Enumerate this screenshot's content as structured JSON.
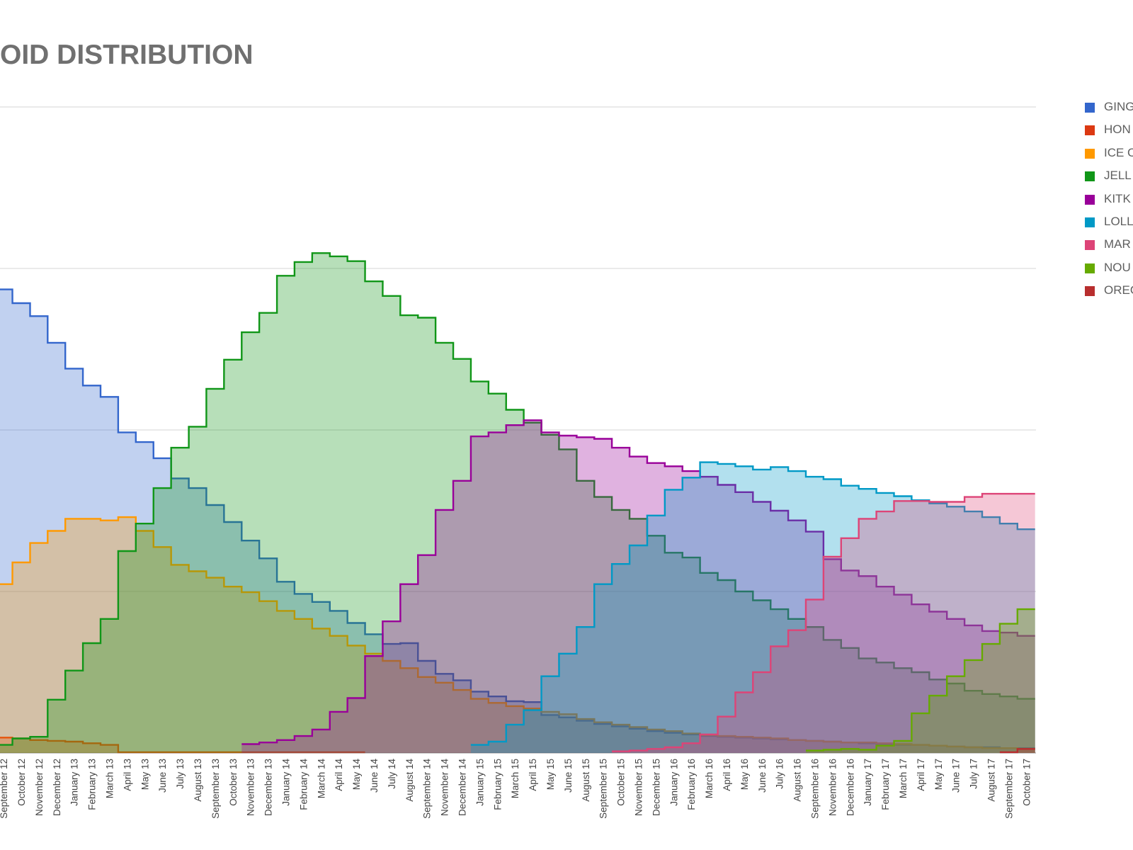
{
  "title": "OID DISTRIBUTION",
  "legend": [
    {
      "label": "GING",
      "color": "#3366cc"
    },
    {
      "label": "HON",
      "color": "#dc3912"
    },
    {
      "label": "ICE C",
      "color": "#ff9900"
    },
    {
      "label": "JELL",
      "color": "#109618"
    },
    {
      "label": "KITK",
      "color": "#990099"
    },
    {
      "label": "LOLL",
      "color": "#0099c6"
    },
    {
      "label": "MAR",
      "color": "#dd4477"
    },
    {
      "label": "NOU",
      "color": "#66aa00"
    },
    {
      "label": "OREO",
      "color": "#b82e2e"
    }
  ],
  "chart_data": {
    "type": "area",
    "style": "stepped, overlapping, semi-transparent fill",
    "title": "OID DISTRIBUTION",
    "xlabel": "",
    "ylabel": "",
    "ylim": [
      0,
      80
    ],
    "y_gridlines": [
      0,
      20,
      40,
      60,
      80
    ],
    "grid": true,
    "legend_position": "right",
    "categories": [
      "September 12",
      "October 12",
      "November 12",
      "December 12",
      "January 13",
      "February 13",
      "March 13",
      "April 13",
      "May 13",
      "June 13",
      "July 13",
      "August 13",
      "September 13",
      "October 13",
      "November 13",
      "December 13",
      "January 14",
      "February 14",
      "March 14",
      "April 14",
      "May 14",
      "June 14",
      "July 14",
      "August 14",
      "September 14",
      "November 14",
      "December 14",
      "January 15",
      "February 15",
      "March 15",
      "April 15",
      "May 15",
      "June 15",
      "August 15",
      "September 15",
      "October 15",
      "November 15",
      "December 15",
      "January 16",
      "February 16",
      "March 16",
      "April 16",
      "May 16",
      "June 16",
      "July 16",
      "August 16",
      "September 16",
      "November 16",
      "December 16",
      "January 17",
      "February 17",
      "March 17",
      "April 17",
      "May 17",
      "June 17",
      "July 17",
      "August 17",
      "September 17",
      "October 17"
    ],
    "series": [
      {
        "name": "GING",
        "color": "#3366cc",
        "values": [
          57.4,
          55.7,
          54.1,
          50.8,
          47.6,
          45.5,
          44.1,
          39.7,
          38.5,
          36.5,
          34.0,
          32.8,
          30.7,
          28.6,
          26.3,
          24.1,
          21.2,
          19.7,
          18.7,
          17.6,
          16.1,
          14.7,
          13.5,
          13.6,
          11.4,
          9.8,
          9.0,
          7.6,
          7.0,
          6.4,
          6.3,
          4.7,
          4.4,
          4.0,
          3.6,
          3.3,
          3.0,
          2.7,
          2.5,
          2.3,
          2.1,
          2.0,
          1.9,
          1.8,
          1.7,
          1.6,
          1.5,
          1.4,
          1.3,
          1.2,
          1.1,
          1.0,
          1.0,
          0.9,
          0.8,
          0.7,
          0.7,
          0.6,
          0.6
        ]
      },
      {
        "name": "HON",
        "color": "#dc3912",
        "values": [
          1.9,
          1.8,
          1.6,
          1.5,
          1.4,
          1.2,
          1.0,
          0.1,
          0.1,
          0.1,
          0.1,
          0.1,
          0.1,
          0.1,
          0.1,
          0.1,
          0.1,
          0.1,
          0.1,
          0.1,
          0.1,
          null,
          null,
          null,
          null,
          null,
          null,
          null,
          null,
          null,
          null,
          null,
          null,
          null,
          null,
          null,
          null,
          null,
          null,
          null,
          null,
          null,
          null,
          null,
          null,
          null,
          null,
          null,
          null,
          null,
          null,
          null,
          null,
          null,
          null,
          null,
          null,
          null,
          null
        ]
      },
      {
        "name": "ICE C",
        "color": "#ff9900",
        "values": [
          20.9,
          23.6,
          26.0,
          27.5,
          29.0,
          29.0,
          28.8,
          29.2,
          27.5,
          25.5,
          23.3,
          22.5,
          21.7,
          20.6,
          19.9,
          18.8,
          17.6,
          16.6,
          15.4,
          14.5,
          13.3,
          12.3,
          11.4,
          10.5,
          9.4,
          8.7,
          7.8,
          6.7,
          6.2,
          5.8,
          5.5,
          5.1,
          4.8,
          4.2,
          3.8,
          3.5,
          3.2,
          2.9,
          2.7,
          2.4,
          2.2,
          2.1,
          2.0,
          1.9,
          1.8,
          1.6,
          1.5,
          1.4,
          1.3,
          1.3,
          1.2,
          1.1,
          1.0,
          0.9,
          0.8,
          0.7,
          0.6,
          0.6,
          0.5
        ]
      },
      {
        "name": "JELL",
        "color": "#109618",
        "values": [
          1.0,
          1.8,
          2.0,
          6.6,
          10.2,
          13.6,
          16.6,
          25.0,
          28.4,
          32.8,
          37.8,
          40.4,
          45.1,
          48.7,
          52.1,
          54.5,
          59.1,
          60.8,
          61.9,
          61.5,
          60.9,
          58.4,
          56.6,
          54.2,
          53.9,
          50.8,
          48.8,
          46.0,
          44.5,
          42.5,
          40.9,
          39.4,
          37.6,
          33.7,
          31.7,
          30.1,
          29.0,
          26.9,
          24.8,
          24.2,
          22.3,
          21.4,
          20.0,
          18.9,
          17.8,
          16.6,
          15.6,
          14.0,
          13.0,
          11.7,
          11.2,
          10.5,
          10.0,
          9.1,
          8.6,
          7.7,
          7.3,
          7.0,
          6.7
        ]
      },
      {
        "name": "KITK",
        "color": "#990099",
        "values": [
          null,
          null,
          null,
          null,
          null,
          null,
          null,
          null,
          null,
          null,
          null,
          null,
          null,
          null,
          1.1,
          1.3,
          1.6,
          2.1,
          2.9,
          5.1,
          6.8,
          12.0,
          16.3,
          20.9,
          24.5,
          30.1,
          33.7,
          39.2,
          39.7,
          40.6,
          41.2,
          39.7,
          39.3,
          39.1,
          38.9,
          37.8,
          36.7,
          35.9,
          35.5,
          34.9,
          34.2,
          33.2,
          32.3,
          31.1,
          30.0,
          28.8,
          27.4,
          24.0,
          22.6,
          21.9,
          20.6,
          19.6,
          18.4,
          17.5,
          16.6,
          15.8,
          15.1,
          14.9,
          14.5
        ]
      },
      {
        "name": "LOLL",
        "color": "#0099c6",
        "values": [
          null,
          null,
          null,
          null,
          null,
          null,
          null,
          null,
          null,
          null,
          null,
          null,
          null,
          null,
          null,
          null,
          null,
          null,
          null,
          null,
          null,
          null,
          null,
          null,
          null,
          null,
          null,
          1.0,
          1.4,
          3.5,
          5.3,
          9.5,
          12.3,
          15.6,
          20.9,
          23.4,
          25.7,
          29.4,
          32.6,
          34.1,
          36.0,
          35.8,
          35.5,
          35.1,
          35.4,
          34.9,
          34.2,
          33.9,
          33.1,
          32.7,
          32.2,
          31.8,
          31.3,
          30.9,
          30.5,
          29.9,
          29.2,
          28.4,
          27.7
        ]
      },
      {
        "name": "MAR",
        "color": "#dd4477",
        "values": [
          null,
          null,
          null,
          null,
          null,
          null,
          null,
          null,
          null,
          null,
          null,
          null,
          null,
          null,
          null,
          null,
          null,
          null,
          null,
          null,
          null,
          null,
          null,
          null,
          null,
          null,
          null,
          null,
          null,
          null,
          null,
          null,
          null,
          null,
          null,
          0.2,
          0.3,
          0.5,
          0.7,
          1.2,
          2.3,
          4.5,
          7.5,
          10.0,
          13.2,
          15.2,
          19.0,
          24.3,
          26.6,
          29.0,
          29.9,
          31.2,
          31.2,
          31.1,
          31.1,
          31.7,
          32.1,
          32.1,
          32.1
        ]
      },
      {
        "name": "NOU",
        "color": "#66aa00",
        "values": [
          null,
          null,
          null,
          null,
          null,
          null,
          null,
          null,
          null,
          null,
          null,
          null,
          null,
          null,
          null,
          null,
          null,
          null,
          null,
          null,
          null,
          null,
          null,
          null,
          null,
          null,
          null,
          null,
          null,
          null,
          null,
          null,
          null,
          null,
          null,
          null,
          null,
          null,
          null,
          null,
          null,
          null,
          null,
          null,
          null,
          null,
          0.3,
          0.4,
          0.5,
          0.4,
          0.9,
          1.5,
          4.9,
          7.1,
          9.5,
          11.5,
          13.5,
          16.0,
          17.8
        ]
      },
      {
        "name": "OREO",
        "color": "#b82e2e",
        "values": [
          null,
          null,
          null,
          null,
          null,
          null,
          null,
          null,
          null,
          null,
          null,
          null,
          null,
          null,
          null,
          null,
          null,
          null,
          null,
          null,
          null,
          null,
          null,
          null,
          null,
          null,
          null,
          null,
          null,
          null,
          null,
          null,
          null,
          null,
          null,
          null,
          null,
          null,
          null,
          null,
          null,
          null,
          null,
          null,
          null,
          null,
          null,
          null,
          null,
          null,
          null,
          null,
          null,
          null,
          null,
          null,
          null,
          0.1,
          0.5
        ]
      }
    ]
  }
}
